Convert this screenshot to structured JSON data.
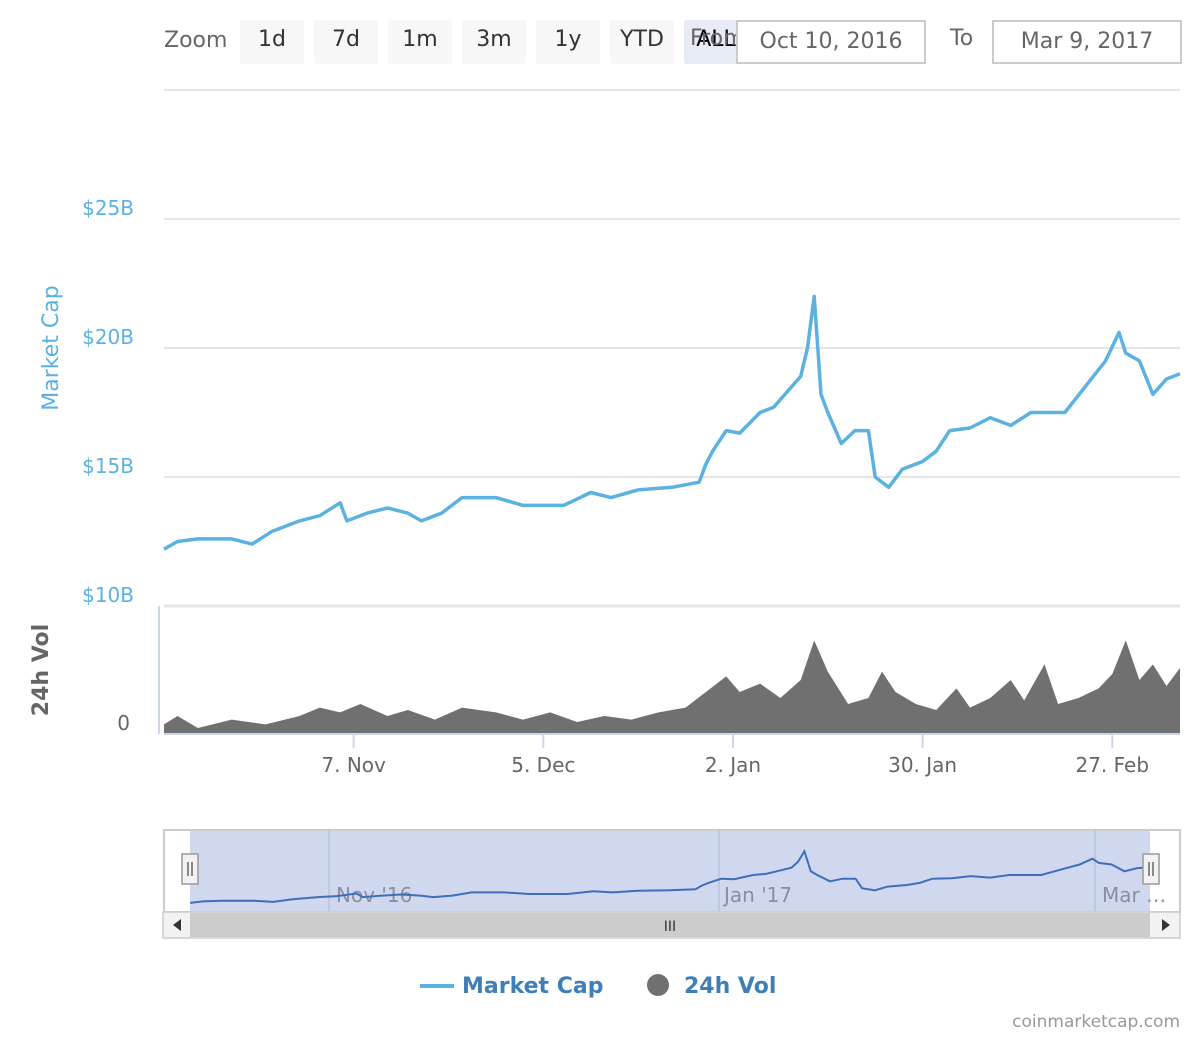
{
  "zoom": {
    "label": "Zoom",
    "buttons": [
      "1d",
      "7d",
      "1m",
      "3m",
      "1y",
      "YTD",
      "ALL"
    ],
    "active": "ALL"
  },
  "range": {
    "from_label": "From",
    "from_value": "Oct 10, 2016",
    "to_label": "To",
    "to_value": "Mar 9, 2017"
  },
  "colors": {
    "market_cap": "#5bb2e0",
    "volume": "#707070",
    "navigator_fill": "#cfd8ee",
    "navigator_line": "#3f6fba",
    "grid": "#e6e6e6",
    "axis_label_mc": "#5bb2e0"
  },
  "navigator": {
    "labels": [
      "Nov '16",
      "Jan '17",
      "Mar …"
    ],
    "handle_glyph": "||",
    "scroll_glyph": "III"
  },
  "legend": {
    "market_cap": "Market Cap",
    "volume": "24h Vol"
  },
  "credit": "coinmarketcap.com",
  "chart_data": {
    "type": "line",
    "title": "",
    "x_range": [
      "2016-10-10",
      "2017-03-09"
    ],
    "x_ticks": [
      {
        "date": "2016-11-07",
        "label": "7. Nov"
      },
      {
        "date": "2016-12-05",
        "label": "5. Dec"
      },
      {
        "date": "2017-01-02",
        "label": "2. Jan"
      },
      {
        "date": "2017-01-30",
        "label": "30. Jan"
      },
      {
        "date": "2017-02-27",
        "label": "27. Feb"
      }
    ],
    "panes": [
      {
        "name": "price",
        "ylabel": "Market Cap",
        "ylim": [
          10,
          30
        ],
        "y_unit": "$B",
        "y_ticks": [
          {
            "value": 10,
            "label": "$10B"
          },
          {
            "value": 15,
            "label": "$15B"
          },
          {
            "value": 20,
            "label": "$20B"
          },
          {
            "value": 25,
            "label": "$25B"
          }
        ],
        "grid": true
      },
      {
        "name": "volume",
        "ylabel": "24h Vol",
        "y_ticks": [
          {
            "value": 0,
            "label": "0"
          }
        ],
        "grid": false
      }
    ],
    "series": [
      {
        "name": "Market Cap",
        "type": "line",
        "unit": "$B",
        "points": [
          [
            "2016-10-10",
            12.2
          ],
          [
            "2016-10-12",
            12.5
          ],
          [
            "2016-10-15",
            12.6
          ],
          [
            "2016-10-20",
            12.6
          ],
          [
            "2016-10-23",
            12.4
          ],
          [
            "2016-10-26",
            12.9
          ],
          [
            "2016-10-30",
            13.3
          ],
          [
            "2016-11-02",
            13.5
          ],
          [
            "2016-11-05",
            14.0
          ],
          [
            "2016-11-06",
            13.3
          ],
          [
            "2016-11-09",
            13.6
          ],
          [
            "2016-11-12",
            13.8
          ],
          [
            "2016-11-15",
            13.6
          ],
          [
            "2016-11-17",
            13.3
          ],
          [
            "2016-11-20",
            13.6
          ],
          [
            "2016-11-23",
            14.2
          ],
          [
            "2016-11-28",
            14.2
          ],
          [
            "2016-12-02",
            13.9
          ],
          [
            "2016-12-08",
            13.9
          ],
          [
            "2016-12-12",
            14.4
          ],
          [
            "2016-12-15",
            14.2
          ],
          [
            "2016-12-19",
            14.5
          ],
          [
            "2016-12-24",
            14.6
          ],
          [
            "2016-12-28",
            14.8
          ],
          [
            "2016-12-29",
            15.5
          ],
          [
            "2016-12-30",
            16.0
          ],
          [
            "2017-01-01",
            16.8
          ],
          [
            "2017-01-03",
            16.7
          ],
          [
            "2017-01-06",
            17.5
          ],
          [
            "2017-01-08",
            17.7
          ],
          [
            "2017-01-10",
            18.3
          ],
          [
            "2017-01-12",
            18.9
          ],
          [
            "2017-01-13",
            20.0
          ],
          [
            "2017-01-14",
            22.0
          ],
          [
            "2017-01-15",
            18.2
          ],
          [
            "2017-01-16",
            17.5
          ],
          [
            "2017-01-18",
            16.3
          ],
          [
            "2017-01-20",
            16.8
          ],
          [
            "2017-01-22",
            16.8
          ],
          [
            "2017-01-23",
            15.0
          ],
          [
            "2017-01-25",
            14.6
          ],
          [
            "2017-01-27",
            15.3
          ],
          [
            "2017-01-30",
            15.6
          ],
          [
            "2017-02-01",
            16.0
          ],
          [
            "2017-02-03",
            16.8
          ],
          [
            "2017-02-06",
            16.9
          ],
          [
            "2017-02-09",
            17.3
          ],
          [
            "2017-02-12",
            17.0
          ],
          [
            "2017-02-15",
            17.5
          ],
          [
            "2017-02-20",
            17.5
          ],
          [
            "2017-02-23",
            18.5
          ],
          [
            "2017-02-26",
            19.5
          ],
          [
            "2017-02-28",
            20.6
          ],
          [
            "2017-03-01",
            19.8
          ],
          [
            "2017-03-03",
            19.5
          ],
          [
            "2017-03-05",
            18.2
          ],
          [
            "2017-03-07",
            18.8
          ],
          [
            "2017-03-09",
            19.0
          ]
        ]
      },
      {
        "name": "24h Vol",
        "type": "area",
        "unit": "relative",
        "ylim": [
          0,
          1
        ],
        "points": [
          [
            "2016-10-10",
            0.08
          ],
          [
            "2016-10-12",
            0.15
          ],
          [
            "2016-10-15",
            0.05
          ],
          [
            "2016-10-20",
            0.12
          ],
          [
            "2016-10-25",
            0.08
          ],
          [
            "2016-10-30",
            0.15
          ],
          [
            "2016-11-02",
            0.22
          ],
          [
            "2016-11-05",
            0.18
          ],
          [
            "2016-11-08",
            0.25
          ],
          [
            "2016-11-12",
            0.15
          ],
          [
            "2016-11-15",
            0.2
          ],
          [
            "2016-11-19",
            0.12
          ],
          [
            "2016-11-23",
            0.22
          ],
          [
            "2016-11-28",
            0.18
          ],
          [
            "2016-12-02",
            0.12
          ],
          [
            "2016-12-06",
            0.18
          ],
          [
            "2016-12-10",
            0.1
          ],
          [
            "2016-12-14",
            0.15
          ],
          [
            "2016-12-18",
            0.12
          ],
          [
            "2016-12-22",
            0.18
          ],
          [
            "2016-12-26",
            0.22
          ],
          [
            "2016-12-29",
            0.35
          ],
          [
            "2017-01-01",
            0.48
          ],
          [
            "2017-01-03",
            0.35
          ],
          [
            "2017-01-06",
            0.42
          ],
          [
            "2017-01-09",
            0.3
          ],
          [
            "2017-01-12",
            0.45
          ],
          [
            "2017-01-14",
            0.78
          ],
          [
            "2017-01-16",
            0.52
          ],
          [
            "2017-01-19",
            0.25
          ],
          [
            "2017-01-22",
            0.3
          ],
          [
            "2017-01-24",
            0.52
          ],
          [
            "2017-01-26",
            0.35
          ],
          [
            "2017-01-29",
            0.25
          ],
          [
            "2017-02-01",
            0.2
          ],
          [
            "2017-02-04",
            0.38
          ],
          [
            "2017-02-06",
            0.22
          ],
          [
            "2017-02-09",
            0.3
          ],
          [
            "2017-02-12",
            0.45
          ],
          [
            "2017-02-14",
            0.28
          ],
          [
            "2017-02-17",
            0.58
          ],
          [
            "2017-02-19",
            0.25
          ],
          [
            "2017-02-22",
            0.3
          ],
          [
            "2017-02-25",
            0.38
          ],
          [
            "2017-02-27",
            0.5
          ],
          [
            "2017-03-01",
            0.78
          ],
          [
            "2017-03-03",
            0.45
          ],
          [
            "2017-03-05",
            0.58
          ],
          [
            "2017-03-07",
            0.4
          ],
          [
            "2017-03-09",
            0.55
          ]
        ]
      }
    ]
  }
}
